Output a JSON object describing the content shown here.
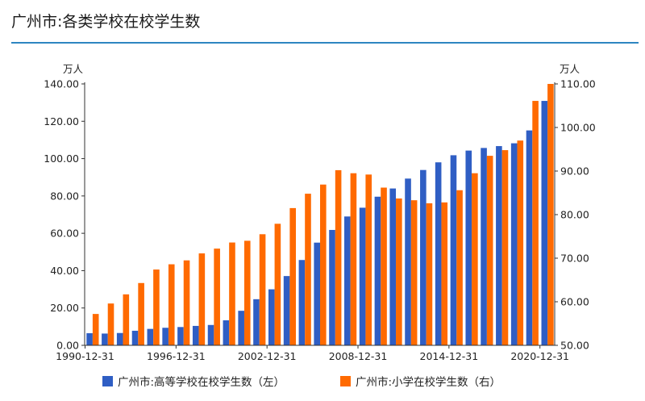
{
  "title": "广州市:各类学校在校学生数",
  "chart_data": {
    "type": "bar",
    "categories": [
      "1990-12-31",
      "1991-12-31",
      "1992-12-31",
      "1993-12-31",
      "1994-12-31",
      "1995-12-31",
      "1996-12-31",
      "1997-12-31",
      "1998-12-31",
      "1999-12-31",
      "2000-12-31",
      "2001-12-31",
      "2002-12-31",
      "2003-12-31",
      "2004-12-31",
      "2005-12-31",
      "2006-12-31",
      "2007-12-31",
      "2008-12-31",
      "2009-12-31",
      "2010-12-31",
      "2011-12-31",
      "2012-12-31",
      "2013-12-31",
      "2014-12-31",
      "2015-12-31",
      "2016-12-31",
      "2017-12-31",
      "2018-12-31",
      "2019-12-31",
      "2020-12-31"
    ],
    "x_tick_labels": [
      "1990-12-31",
      "1996-12-31",
      "2002-12-31",
      "2008-12-31",
      "2014-12-31",
      "2020-12-31"
    ],
    "x_tick_indices": [
      0,
      6,
      12,
      18,
      24,
      30
    ],
    "left_axis": {
      "unit": "万人",
      "ylim": [
        0,
        140
      ],
      "ticks": [
        "0.00",
        "20.00",
        "40.00",
        "60.00",
        "80.00",
        "100.00",
        "120.00",
        "140.00"
      ]
    },
    "right_axis": {
      "unit": "万人",
      "ylim": [
        50,
        110
      ],
      "ticks": [
        "50.00",
        "60.00",
        "70.00",
        "80.00",
        "90.00",
        "100.00",
        "110.00"
      ]
    },
    "series": [
      {
        "name": "广州市:高等学校在校学生数（左）",
        "axis": "left",
        "color": "#2f5ec4",
        "values": [
          6.5,
          6.3,
          6.6,
          7.8,
          8.8,
          9.4,
          9.8,
          10.4,
          10.9,
          13.4,
          18.5,
          24.7,
          30.0,
          37.1,
          45.7,
          55.0,
          61.8,
          69.0,
          73.7,
          79.6,
          84.0,
          89.3,
          93.9,
          98.0,
          101.8,
          104.3,
          105.7,
          106.7,
          108.2,
          115.1,
          130.9
        ]
      },
      {
        "name": "广州市:小学在校学生数（右）",
        "axis": "right",
        "color": "#ff6a00",
        "values": [
          57.2,
          59.6,
          61.7,
          64.3,
          67.4,
          68.6,
          69.5,
          71.1,
          72.2,
          73.6,
          74.0,
          75.5,
          77.9,
          81.5,
          84.8,
          86.9,
          90.2,
          89.5,
          89.2,
          86.2,
          83.7,
          83.3,
          82.6,
          82.8,
          85.6,
          89.5,
          93.5,
          94.8,
          97.0,
          106.1,
          110.0
        ]
      }
    ],
    "grid": false,
    "legend_position": "bottom"
  }
}
